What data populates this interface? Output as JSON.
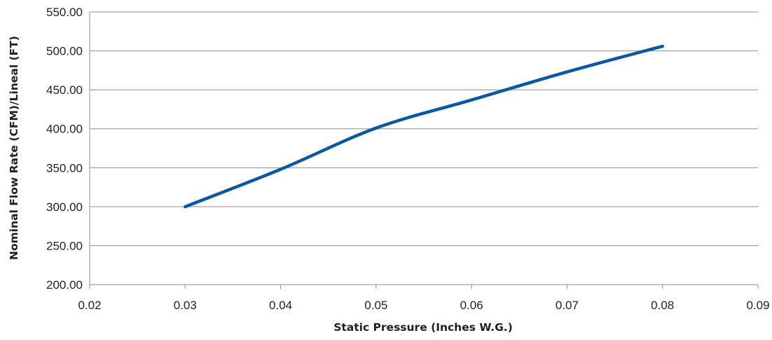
{
  "chart_data": {
    "type": "line",
    "xlabel": "Static Pressure (Inches W.G.)",
    "ylabel": "Nominal Flow Rate (CFM)/Lineal (FT)",
    "xlim": [
      0.02,
      0.09
    ],
    "ylim": [
      200,
      550
    ],
    "x_ticks": [
      "0.02",
      "0.03",
      "0.04",
      "0.05",
      "0.06",
      "0.07",
      "0.08",
      "0.09"
    ],
    "y_ticks": [
      "550.00",
      "500.00",
      "450.00",
      "400.00",
      "350.00",
      "300.00",
      "250.00",
      "200.00"
    ],
    "grid": true,
    "series": [
      {
        "color": "#0a58a4",
        "x": [
          0.03,
          0.04,
          0.05,
          0.06,
          0.07,
          0.08
        ],
        "y": [
          300,
          348,
          401,
          437,
          473,
          506
        ]
      }
    ]
  }
}
